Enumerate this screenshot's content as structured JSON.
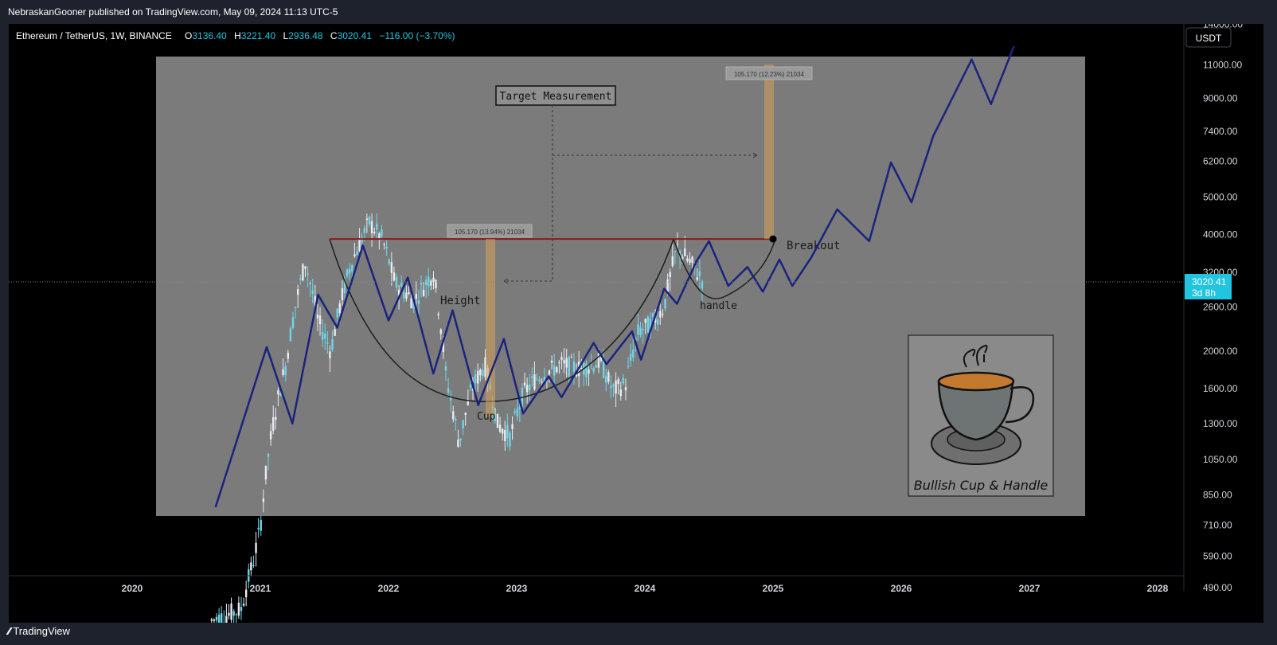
{
  "header": {
    "published": "NebraskanGooner published on TradingView.com, May 09, 2024 11:13 UTC-5"
  },
  "symbol": {
    "name": "Ethereum / TetherUS, 1W, BINANCE",
    "o_label": "O",
    "o": "3136.40",
    "h_label": "H",
    "h": "3221.40",
    "l_label": "L",
    "l": "2936.48",
    "c_label": "C",
    "c": "3020.41",
    "change": "−116.00 (−3.70%)"
  },
  "currency_button": "USDT",
  "price_tag": {
    "price": "3020.41",
    "countdown": "3d 8h"
  },
  "footer": {
    "brand": "TradingView"
  },
  "colors": {
    "candle_bull": "#e8ecf2",
    "candle_bear": "#6fd6e8",
    "projection": "#1a237e",
    "resistance": "#8b1a1a",
    "price_tag": "#22c5e0",
    "overlay": "#808080"
  },
  "chart_data": {
    "type": "line",
    "title": "Bullish Cup & Handle",
    "y_scale": "log",
    "yticks": [
      "14000.00",
      "11000.00",
      "9000.00",
      "7400.00",
      "6200.00",
      "5000.00",
      "4000.00",
      "3200.00",
      "2600.00",
      "2000.00",
      "1600.00",
      "1300.00",
      "1050.00",
      "850.00",
      "710.00",
      "590.00",
      "490.00"
    ],
    "xticks": [
      "2020",
      "2021",
      "2022",
      "2023",
      "2024",
      "2025",
      "2026",
      "2027",
      "2028"
    ],
    "annotations": {
      "target_measurement": "Target Measurement",
      "height": "Height",
      "cup": "Cup",
      "handle": "handle",
      "breakout": "Breakout",
      "measure_left": "105.170 (13.94%) 21034",
      "measure_right": "105.170 (12.23%) 21034"
    },
    "series": [
      {
        "values": [
          [
            2020.65,
            790
          ],
          [
            2021.05,
            2050
          ],
          [
            2021.25,
            1300
          ],
          [
            2021.45,
            2800
          ],
          [
            2021.6,
            2300
          ],
          [
            2021.8,
            3750
          ],
          [
            2022.0,
            2400
          ],
          [
            2022.15,
            3100
          ],
          [
            2022.35,
            1750
          ],
          [
            2022.5,
            2550
          ],
          [
            2022.7,
            1450
          ],
          [
            2022.9,
            2150
          ],
          [
            2023.05,
            1380
          ],
          [
            2023.25,
            1720
          ],
          [
            2023.35,
            1520
          ],
          [
            2023.6,
            2100
          ],
          [
            2023.7,
            1850
          ],
          [
            2023.9,
            2250
          ],
          [
            2023.97,
            1900
          ],
          [
            2024.15,
            2900
          ],
          [
            2024.25,
            2650
          ],
          [
            2024.4,
            3400
          ],
          [
            2024.5,
            3850
          ],
          [
            2024.65,
            2950
          ],
          [
            2024.8,
            3300
          ],
          [
            2024.92,
            2850
          ],
          [
            2025.05,
            3450
          ],
          [
            2025.15,
            2950
          ],
          [
            2025.3,
            3500
          ],
          [
            2025.5,
            4650
          ],
          [
            2025.75,
            3850
          ],
          [
            2025.92,
            6150
          ],
          [
            2026.08,
            4850
          ],
          [
            2026.25,
            7200
          ],
          [
            2026.55,
            11350
          ],
          [
            2026.7,
            8700
          ],
          [
            2026.88,
            12300
          ]
        ]
      }
    ],
    "resistance": 3900,
    "breakout_point": [
      2025.0,
      3900
    ],
    "last_price": 3020.41
  }
}
